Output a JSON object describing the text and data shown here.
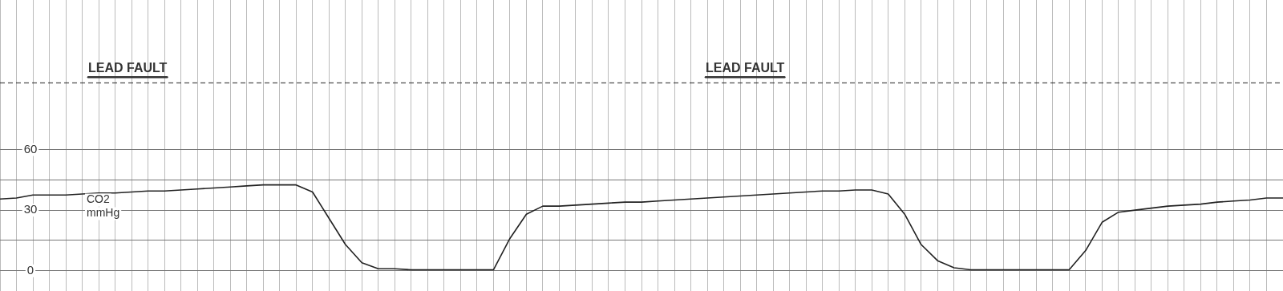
{
  "chart_data": {
    "type": "line",
    "ylabel": "CO2 mmHg",
    "categories": [
      null,
      null,
      null,
      null,
      null,
      null,
      null,
      null,
      null,
      null,
      null,
      null,
      null,
      null,
      null,
      null,
      null,
      null,
      null,
      null,
      null,
      null,
      null,
      null,
      null,
      null,
      null,
      null,
      null,
      null,
      null,
      null,
      null,
      null,
      null,
      null,
      null,
      null,
      null,
      null,
      null,
      null,
      null,
      null,
      null,
      null,
      null,
      null,
      null,
      null,
      null,
      null,
      null,
      null,
      null,
      null,
      null,
      null,
      null,
      null,
      null,
      null,
      null,
      null,
      null,
      null,
      null,
      null,
      null,
      null,
      null,
      null,
      null,
      null,
      null,
      null,
      null,
      null,
      null
    ],
    "series": [
      {
        "color": "#222222",
        "values": [
          35.5,
          36,
          37.5,
          37.5,
          37.5,
          38,
          38.5,
          38.5,
          39,
          39.5,
          39.5,
          40,
          40.5,
          41,
          41.5,
          42,
          42.5,
          42.5,
          42.5,
          39,
          26,
          13,
          4,
          1,
          1,
          0.5,
          0.5,
          0.5,
          0.5,
          0.5,
          0.5,
          16,
          28,
          32,
          32,
          32.5,
          33,
          33.5,
          34,
          34,
          34.5,
          35,
          35.5,
          36,
          36.5,
          37,
          37.5,
          38,
          38.5,
          39,
          39.5,
          39.5,
          40,
          40,
          38,
          28,
          13,
          5,
          1.5,
          0.5,
          0.5,
          0.5,
          0.5,
          0.5,
          0.5,
          0.5,
          10,
          24,
          29,
          30,
          31,
          32,
          32.5,
          33,
          34,
          34.5,
          35,
          36,
          36
        ]
      }
    ],
    "ylim": [
      -10,
      134
    ],
    "yticks": [
      0,
      {
        "value": 15,
        "label": null
      },
      30,
      {
        "value": 45,
        "label": null
      },
      60
    ],
    "ref_lines": [
      {
        "axis": "y",
        "value": 93,
        "line_style": "dashed"
      }
    ],
    "annotations": [
      "LEAD FAULT",
      "LEAD FAULT"
    ],
    "grid": true,
    "tick_labels": "y",
    "marker": "none",
    "line_style": "solid",
    "legend": false
  }
}
